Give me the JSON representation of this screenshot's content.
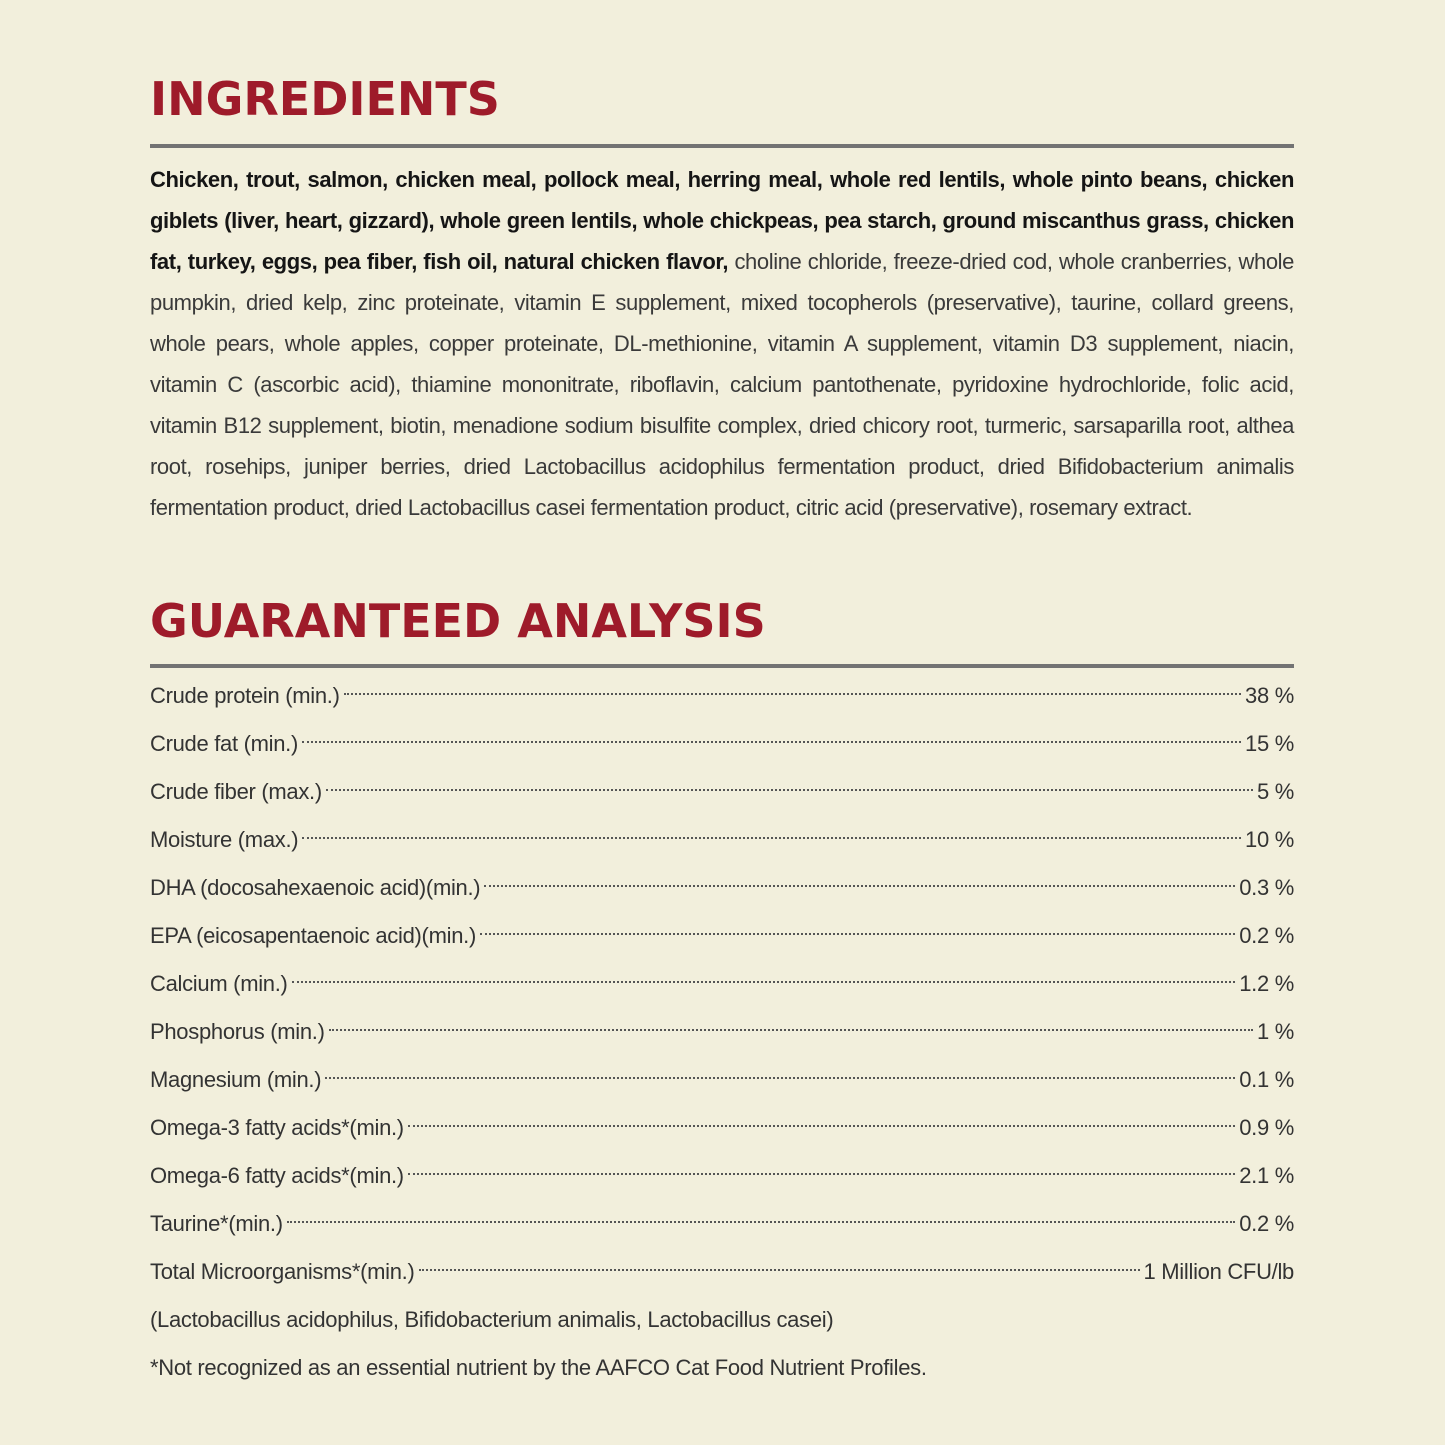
{
  "ingredients": {
    "title": "INGREDIENTS",
    "bold_text": "Chicken, trout, salmon, chicken meal, pollock meal, herring meal, whole red lentils, whole pinto beans, chicken giblets (liver, heart, gizzard), whole green lentils, whole chickpeas, pea starch, ground miscanthus grass, chicken fat, turkey, eggs, pea fiber, fish oil, natural chicken flavor,",
    "regular_text": " choline chloride, freeze-dried cod, whole cranberries, whole pumpkin, dried kelp, zinc proteinate, vitamin E supplement, mixed tocopherols (preservative), taurine, collard greens, whole pears, whole apples, copper proteinate, DL-methionine, vitamin A supplement, vitamin D3 supplement, niacin, vitamin C (ascorbic acid), thiamine mononitrate, riboflavin, calcium pantothenate, pyridoxine hydrochloride, folic acid, vitamin B12 supplement, biotin, menadione sodium bisulfite complex, dried chicory root, turmeric, sarsaparilla root, althea root, rosehips, juniper berries, dried Lactobacillus acidophilus fermentation product, dried Bifidobacterium animalis fermentation product, dried Lactobacillus casei fermentation product, citric acid (preservative), rosemary extract."
  },
  "analysis": {
    "title": "GUARANTEED ANALYSIS",
    "rows": [
      {
        "label": "Crude protein (min.)",
        "value": "38 %"
      },
      {
        "label": "Crude fat (min.)",
        "value": "15 %"
      },
      {
        "label": "Crude fiber (max.)",
        "value": "5 %"
      },
      {
        "label": "Moisture (max.)",
        "value": "10 %"
      },
      {
        "label": "DHA (docosahexaenoic acid)(min.)",
        "value": "0.3 %"
      },
      {
        "label": "EPA (eicosapentaenoic acid)(min.)",
        "value": "0.2 %"
      },
      {
        "label": "Calcium (min.)",
        "value": "1.2 %"
      },
      {
        "label": "Phosphorus (min.)",
        "value": "1 %"
      },
      {
        "label": "Magnesium (min.)",
        "value": "0.1 %"
      },
      {
        "label": "Omega-3 fatty acids*(min.)",
        "value": "0.9 %"
      },
      {
        "label": "Omega-6 fatty acids*(min.)",
        "value": "2.1 %"
      },
      {
        "label": "Taurine*(min.)",
        "value": "0.2 %"
      },
      {
        "label": "Total Microorganisms*(min.)",
        "value": "1 Million CFU/lb"
      }
    ],
    "microorganisms_note": "(Lactobacillus acidophilus, Bifidobacterium animalis, Lactobacillus casei)",
    "footnote": "*Not recognized as an essential nutrient by the AAFCO Cat Food Nutrient Profiles."
  },
  "colors": {
    "background": "#f2efdc",
    "heading": "#9e1b2a",
    "rule": "#737373"
  }
}
